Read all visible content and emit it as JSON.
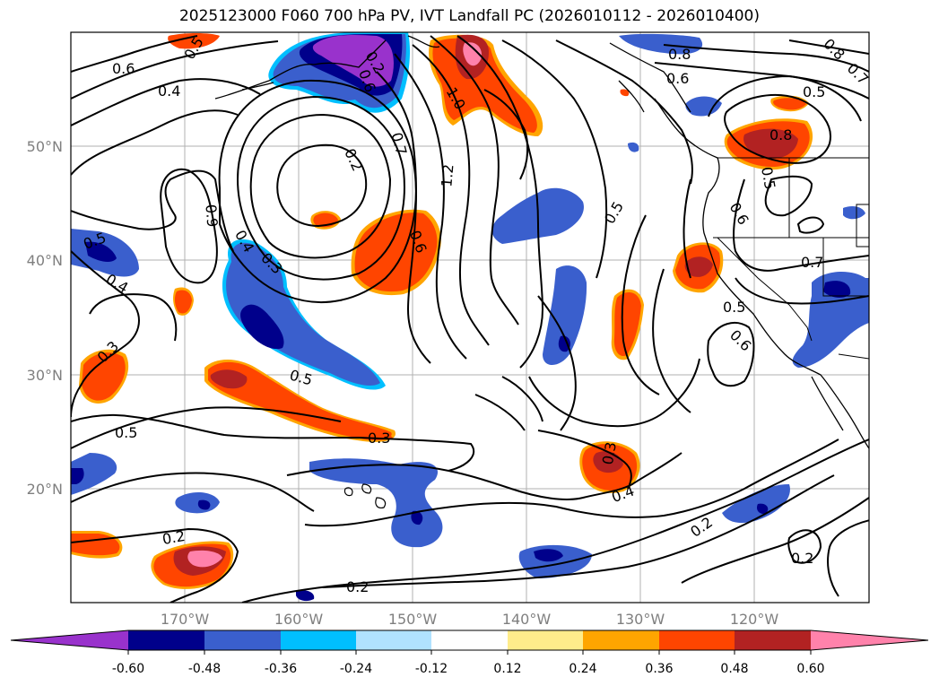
{
  "title": "2025123000 F060 700 hPa PV, IVT Landfall PC (2026010112 - 2026010400)",
  "map": {
    "lon_range": [
      -180,
      -110
    ],
    "lat_range": [
      10,
      60
    ],
    "lat_ticks": [
      {
        "value": 50,
        "label": "50°N"
      },
      {
        "value": 40,
        "label": "40°N"
      },
      {
        "value": 30,
        "label": "30°N"
      },
      {
        "value": 20,
        "label": "20°N"
      }
    ],
    "lon_ticks": [
      {
        "value": -170,
        "label": "170°W"
      },
      {
        "value": -160,
        "label": "160°W"
      },
      {
        "value": -150,
        "label": "150°W"
      },
      {
        "value": -140,
        "label": "140°W"
      },
      {
        "value": -130,
        "label": "130°W"
      },
      {
        "value": -120,
        "label": "120°W"
      }
    ]
  },
  "contour_labels": [
    "0.6",
    "0.4",
    "0.5",
    "0.2",
    "0.7",
    "0.6",
    "1.0",
    "1.2",
    "0.2",
    "0.6",
    "0.9",
    "0.4",
    "0.3",
    "0.5",
    "0.4",
    "0.5",
    "0.3",
    "0.5",
    "0.3",
    "0.5",
    "0.3",
    "0.4",
    "0.2",
    "0.2",
    "0.2",
    "0.2",
    "0.8",
    "0.6",
    "0.5",
    "0.8",
    "0.7",
    "0.8",
    "0.6",
    "0.7",
    "0.5",
    "0.6",
    "0.5"
  ],
  "colorbar": {
    "colors": {
      "c1": "#9932cc",
      "c2": "#00008b",
      "c3": "#3a5fcd",
      "c4": "#00bfff",
      "c5": "#b0e2ff",
      "c6": "#ffffff",
      "c7": "#ffec8b",
      "c8": "#ffa500",
      "c9": "#ff4500",
      "c10": "#b22222",
      "c11": "#ff82ab"
    },
    "ticks": [
      "-0.60",
      "-0.48",
      "-0.36",
      "-0.24",
      "-0.12",
      "0.12",
      "0.24",
      "0.36",
      "0.48",
      "0.60"
    ]
  }
}
